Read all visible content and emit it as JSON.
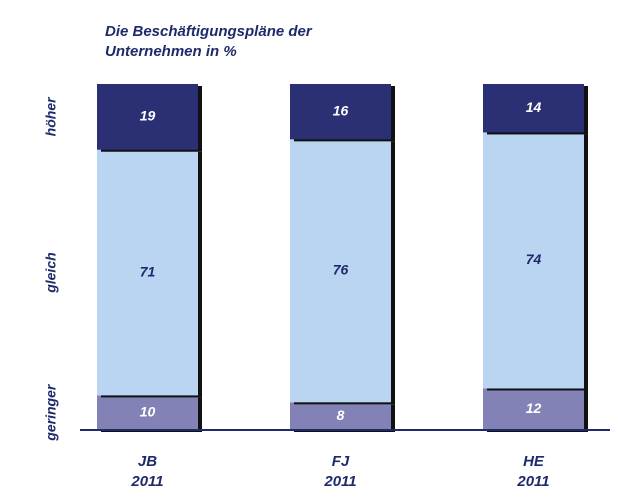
{
  "chart_data": {
    "type": "stacked_bar",
    "title": "Die Beschäftigungspläne der Unternehmen  in %",
    "categories": [
      "JB 2011",
      "FJ 2011",
      "HE 2011"
    ],
    "series": [
      {
        "name": "geringer",
        "color": "#8282b6",
        "label_color": "#ffffff",
        "values": [
          10,
          8,
          12
        ]
      },
      {
        "name": "gleich",
        "color": "#b9d5f2",
        "label_color": "#1f2a6b",
        "values": [
          71,
          76,
          74
        ]
      },
      {
        "name": "höher",
        "color": "#2b3075",
        "label_color": "#ffffff",
        "values": [
          19,
          16,
          14
        ]
      }
    ],
    "ylim": [
      0,
      100
    ]
  }
}
